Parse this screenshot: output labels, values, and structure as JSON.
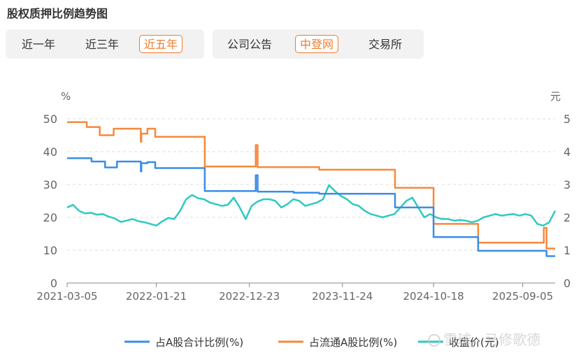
{
  "page": {
    "title": "股权质押比例趋势图"
  },
  "range_tabs": [
    {
      "label": "近一年",
      "active": false
    },
    {
      "label": "近三年",
      "active": false
    },
    {
      "label": "近五年",
      "active": true
    }
  ],
  "source_tabs": [
    {
      "label": "公司公告",
      "active": false
    },
    {
      "label": "中登网",
      "active": true
    },
    {
      "label": "交易所",
      "active": false
    }
  ],
  "watermark": "雪球 · 马修歌德",
  "chart_data": {
    "type": "line",
    "x_tick_labels": [
      "2021-03-05",
      "2022-01-21",
      "2022-12-23",
      "2023-11-24",
      "2024-10-18",
      "2025-09-05"
    ],
    "y_left": {
      "unit": "%",
      "ticks": [
        0,
        10,
        20,
        30,
        40,
        50
      ],
      "range": [
        0,
        55
      ]
    },
    "y_right": {
      "unit": "元",
      "ticks": [
        0,
        1,
        2,
        3,
        4,
        5
      ],
      "range": [
        0,
        5.5
      ]
    },
    "grid": true,
    "legend_position": "bottom",
    "series": [
      {
        "name": "占A股合计比例(%)",
        "axis": "left",
        "color": "#3a8ee6",
        "step": true,
        "points": [
          [
            "2021-03-05",
            38.0
          ],
          [
            "2021-06-01",
            37.0
          ],
          [
            "2021-07-20",
            35.2
          ],
          [
            "2021-09-01",
            37.0
          ],
          [
            "2021-11-26",
            34.0
          ],
          [
            "2021-11-28",
            36.5
          ],
          [
            "2021-12-20",
            36.8
          ],
          [
            "2022-01-17",
            35.0
          ],
          [
            "2022-07-15",
            28.0
          ],
          [
            "2022-12-23",
            28.0
          ],
          [
            "2023-01-15",
            32.8
          ],
          [
            "2023-01-22",
            27.8
          ],
          [
            "2023-06-01",
            27.5
          ],
          [
            "2023-09-01",
            27.2
          ],
          [
            "2024-06-01",
            23.0
          ],
          [
            "2024-10-18",
            14.0
          ],
          [
            "2025-03-28",
            9.8
          ],
          [
            "2025-11-30",
            8.2
          ],
          [
            "2025-12-31",
            8.2
          ]
        ]
      },
      {
        "name": "占流通A股比例(%)",
        "axis": "left",
        "color": "#f5893d",
        "step": true,
        "points": [
          [
            "2021-03-05",
            49.0
          ],
          [
            "2021-05-15",
            47.5
          ],
          [
            "2021-07-01",
            45.0
          ],
          [
            "2021-08-20",
            47.0
          ],
          [
            "2021-11-26",
            43.0
          ],
          [
            "2021-11-28",
            45.5
          ],
          [
            "2021-12-20",
            47.0
          ],
          [
            "2022-01-17",
            44.5
          ],
          [
            "2022-07-15",
            35.5
          ],
          [
            "2022-12-23",
            35.5
          ],
          [
            "2023-01-15",
            42.0
          ],
          [
            "2023-01-22",
            35.3
          ],
          [
            "2023-09-01",
            34.5
          ],
          [
            "2024-06-01",
            29.0
          ],
          [
            "2024-10-18",
            18.0
          ],
          [
            "2025-03-28",
            12.3
          ],
          [
            "2025-11-20",
            16.8
          ],
          [
            "2025-11-30",
            10.5
          ],
          [
            "2025-12-31",
            10.5
          ]
        ]
      },
      {
        "name": "收盘价(元)",
        "axis": "right",
        "color": "#2fc9c1",
        "step": false,
        "values_start": "2021-03-05",
        "values_end": "2025-12-31",
        "values": [
          2.3,
          2.38,
          2.2,
          2.12,
          2.14,
          2.08,
          2.1,
          2.02,
          1.97,
          1.86,
          1.9,
          1.95,
          1.88,
          1.85,
          1.8,
          1.75,
          1.88,
          1.98,
          1.95,
          2.2,
          2.55,
          2.68,
          2.58,
          2.55,
          2.45,
          2.4,
          2.35,
          2.38,
          2.6,
          2.3,
          1.95,
          2.35,
          2.48,
          2.55,
          2.55,
          2.5,
          2.3,
          2.4,
          2.55,
          2.5,
          2.35,
          2.4,
          2.45,
          2.55,
          2.98,
          2.8,
          2.65,
          2.55,
          2.4,
          2.35,
          2.2,
          2.1,
          2.05,
          2.0,
          2.05,
          2.1,
          2.3,
          2.5,
          2.6,
          2.3,
          2.0,
          2.1,
          2.0,
          1.95,
          1.95,
          1.9,
          1.92,
          1.9,
          1.85,
          1.9,
          2.0,
          2.05,
          2.1,
          2.05,
          2.08,
          2.1,
          2.05,
          2.1,
          2.05,
          1.8,
          1.75,
          1.85,
          2.2
        ]
      }
    ]
  }
}
